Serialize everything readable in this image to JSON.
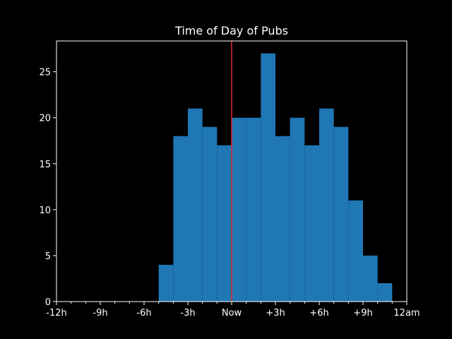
{
  "chart_data": {
    "type": "bar",
    "title": "Time of Day of Pubs",
    "xlabel": "",
    "ylabel": "",
    "x_bin_edges_hours": [
      -12,
      -11,
      -10,
      -9,
      -8,
      -7,
      -6,
      -5,
      -4,
      -3,
      -2,
      -1,
      0,
      1,
      2,
      3,
      4,
      5,
      6,
      7,
      8,
      9,
      10,
      11,
      12
    ],
    "values": [
      0,
      0,
      0,
      0,
      0,
      0,
      0,
      4,
      18,
      21,
      19,
      17,
      20,
      20,
      27,
      18,
      20,
      17,
      21,
      19,
      11,
      5,
      2,
      0
    ],
    "xlim": [
      -12,
      12
    ],
    "ylim": [
      0,
      28.35
    ],
    "x_ticks": [
      {
        "value": -12,
        "label": "-12h"
      },
      {
        "value": -9,
        "label": "-9h"
      },
      {
        "value": -6,
        "label": "-6h"
      },
      {
        "value": -3,
        "label": "-3h"
      },
      {
        "value": 0,
        "label": "Now"
      },
      {
        "value": 3,
        "label": "+3h"
      },
      {
        "value": 6,
        "label": "+6h"
      },
      {
        "value": 9,
        "label": "+9h"
      },
      {
        "value": 12,
        "label": "12am"
      }
    ],
    "x_minor_ticks": [
      -11,
      -10,
      -8,
      -7,
      -5,
      -4,
      -2,
      -1,
      1,
      2,
      4,
      5,
      7,
      8,
      10,
      11
    ],
    "y_ticks": [
      0,
      5,
      10,
      15,
      20,
      25
    ],
    "reference_line": {
      "x": 0,
      "color": "#d62728"
    },
    "bar_color": "#1f77b4",
    "background_color": "#000000",
    "foreground_color": "#ffffff",
    "grid": false
  }
}
